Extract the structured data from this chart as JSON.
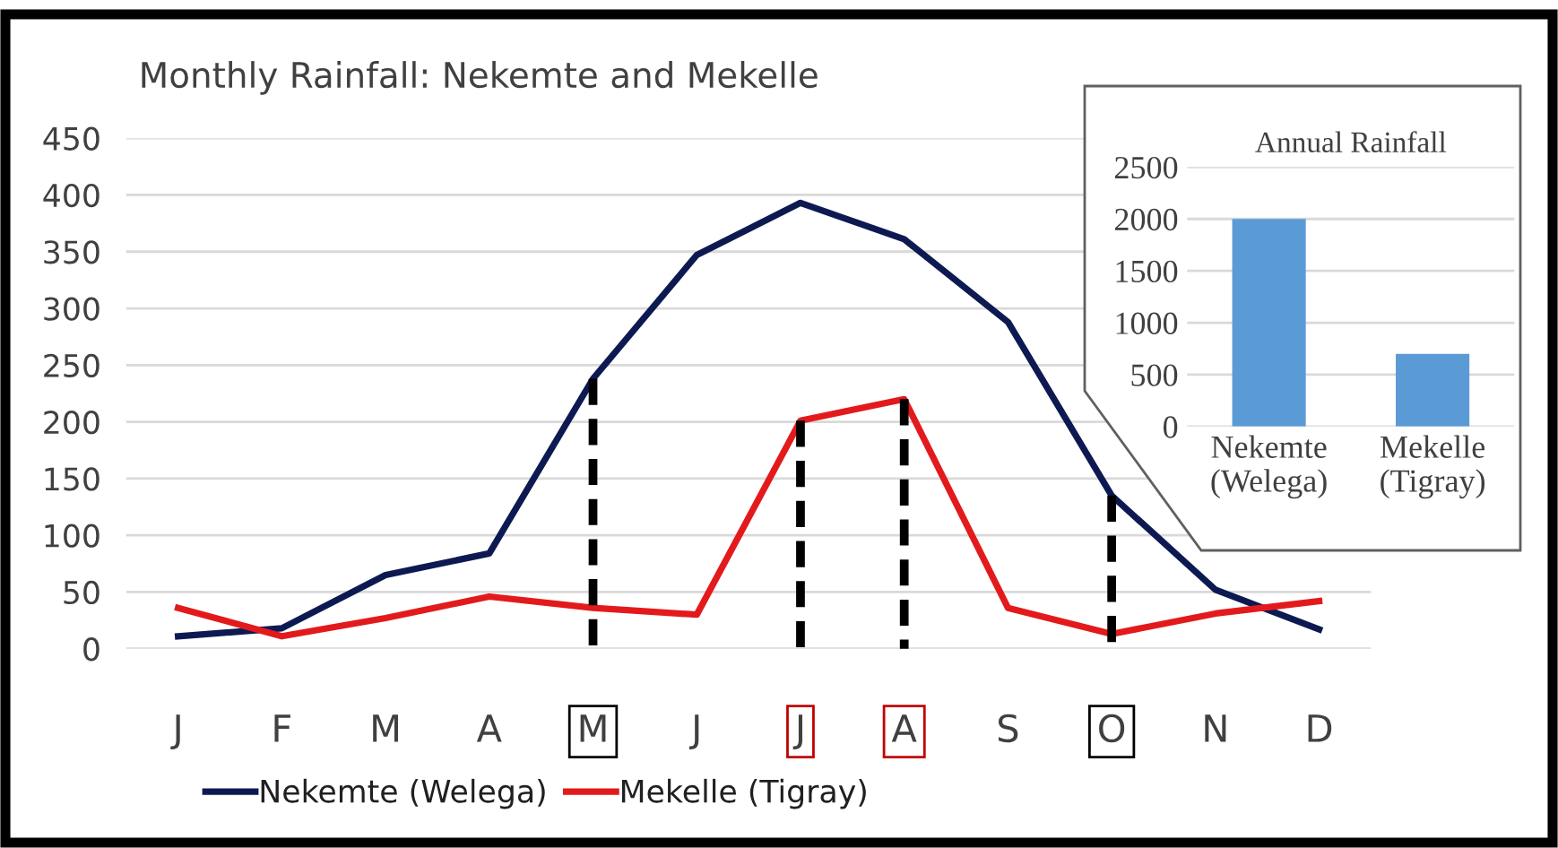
{
  "chart_data": [
    {
      "type": "line",
      "title": "Monthly Rainfall: Nekemte and Mekelle",
      "categories": [
        "J",
        "F",
        "M",
        "A",
        "M",
        "J",
        "J",
        "A",
        "S",
        "O",
        "N",
        "D"
      ],
      "series": [
        {
          "name": "Nekemte (Welega)",
          "color": "#0d1a52",
          "values": [
            11,
            18,
            65,
            84,
            238,
            347,
            393,
            361,
            288,
            135,
            52,
            17
          ]
        },
        {
          "name": "Mekelle (Tigray)",
          "color": "#e31a1c",
          "values": [
            36,
            11,
            27,
            46,
            36,
            30,
            201,
            220,
            36,
            13,
            31,
            42
          ]
        }
      ],
      "ylim": [
        0,
        450
      ],
      "yticks": [
        0,
        50,
        100,
        150,
        200,
        250,
        300,
        350,
        400,
        450
      ],
      "grid": "y",
      "legend": "bottom",
      "marker": "none",
      "line_style": "solid"
    },
    {
      "type": "bar",
      "title": "Annual Rainfall",
      "categories": [
        "Nekemte\n(Welega)",
        "Mekelle\n(Tigray)"
      ],
      "values": [
        2000,
        700
      ],
      "color": "#5b9bd5",
      "ylim": [
        0,
        2500
      ],
      "yticks": [
        0,
        500,
        1000,
        1500,
        2000,
        2500
      ],
      "grid": "y"
    }
  ]
}
